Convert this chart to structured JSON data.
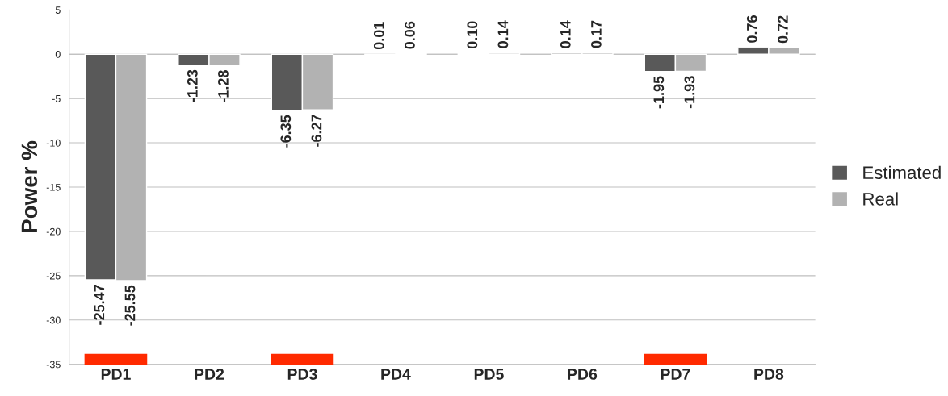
{
  "chart_data": {
    "type": "bar",
    "ylabel": "Power %",
    "categories": [
      "PD1",
      "PD2",
      "PD3",
      "PD4",
      "PD5",
      "PD6",
      "PD7",
      "PD8"
    ],
    "series": [
      {
        "name": "Estimated",
        "color": "#595959",
        "values": [
          -25.47,
          -1.23,
          -6.35,
          0.01,
          0.1,
          0.14,
          -1.95,
          0.76
        ],
        "value_labels": [
          "-25.47",
          "-1.23",
          "-6.35",
          "0.01",
          "0.10",
          "0.14",
          "-1.95",
          "0.76"
        ]
      },
      {
        "name": "Real",
        "color": "#b2b2b2",
        "values": [
          -25.55,
          -1.28,
          -6.27,
          0.06,
          0.14,
          0.17,
          -1.93,
          0.72
        ],
        "value_labels": [
          "-25.55",
          "-1.28",
          "-6.27",
          "0.06",
          "0.14",
          "0.17",
          "-1.93",
          "0.72"
        ]
      }
    ],
    "ylim": [
      -35,
      5
    ],
    "yticks": [
      -35,
      -30,
      -25,
      -20,
      -15,
      -10,
      -5,
      0,
      5
    ],
    "grid": "y",
    "legend": "right"
  }
}
